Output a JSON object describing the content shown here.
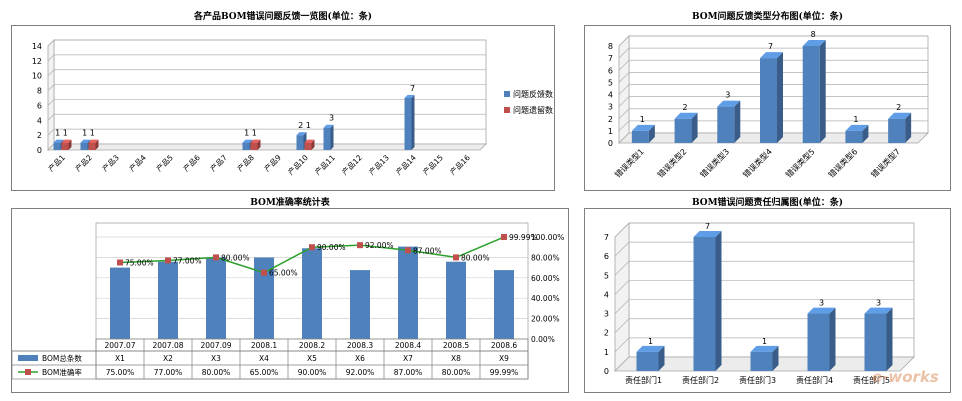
{
  "chart_data": [
    {
      "type": "bar",
      "title": "各产品BOM错误问题反馈一览图(单位：条)",
      "categories": [
        "产品1",
        "产品2",
        "产品3",
        "产品4",
        "产品5",
        "产品6",
        "产品7",
        "产品8",
        "产品9",
        "产品10",
        "产品11",
        "产品12",
        "产品13",
        "产品14",
        "产品15",
        "产品16"
      ],
      "series": [
        {
          "name": "问题反馈数",
          "values": [
            1,
            1,
            0,
            0,
            0,
            0,
            0,
            1,
            0,
            2,
            3,
            0,
            0,
            7,
            0,
            0
          ],
          "color": "#4f81bd"
        },
        {
          "name": "问题遗留数",
          "values": [
            1,
            1,
            0,
            0,
            0,
            0,
            0,
            1,
            0,
            1,
            0,
            0,
            0,
            0,
            0,
            0
          ],
          "color": "#c0504d"
        }
      ],
      "data_labels": [
        {
          "category": "产品1",
          "text": "1 1"
        },
        {
          "category": "产品2",
          "text": "1 1"
        },
        {
          "category": "产品8",
          "text": "1 1"
        },
        {
          "category": "产品10",
          "text": "2 1"
        },
        {
          "category": "产品11",
          "text": "3"
        },
        {
          "category": "产品14",
          "text": "7"
        }
      ],
      "yticks": [
        "0",
        "2",
        "4",
        "6",
        "8",
        "10",
        "12",
        "14"
      ],
      "ylim": [
        0,
        14
      ],
      "legend": "right",
      "grid": true
    },
    {
      "type": "bar",
      "title": "BOM问题反馈类型分布图(单位：条)",
      "categories": [
        "错误类型1",
        "错误类型2",
        "错误类型3",
        "错误类型4",
        "错误类型5",
        "错误类型6",
        "错误类型7"
      ],
      "values": [
        1,
        2,
        3,
        7,
        8,
        1,
        2
      ],
      "color": "#4f81bd",
      "yticks": [
        "0",
        "1",
        "2",
        "3",
        "4",
        "5",
        "6",
        "7",
        "8"
      ],
      "ylim": [
        0,
        8
      ],
      "grid": true
    },
    {
      "type": "bar",
      "title": "BOM准确率统计表",
      "categories": [
        "2007.07",
        "2007.08",
        "2007.09",
        "2008.1",
        "2008.2",
        "2008.3",
        "2008.4",
        "2008.5",
        "2008.6"
      ],
      "series": [
        {
          "name": "BOM总条数",
          "values": [
            "X1",
            "X2",
            "X3",
            "X4",
            "X5",
            "X6",
            "X7",
            "X8",
            "X9"
          ],
          "color": "#4f81bd"
        },
        {
          "name": "BOM准确率",
          "values": [
            0.75,
            0.77,
            0.8,
            0.65,
            0.9,
            0.92,
            0.87,
            0.8,
            0.9999
          ],
          "color": "#c0504d",
          "line_color": "#2ca02c"
        }
      ],
      "rate_labels": [
        "75.00%",
        "77.00%",
        "80.00%",
        "65.00%",
        "90.00%",
        "92.00%",
        "87.00%",
        "80.00%",
        "99.99%"
      ],
      "y2ticks": [
        "0.00%",
        "20.00%",
        "40.00%",
        "60.00%",
        "80.00%",
        "100.00%"
      ],
      "y2lim": [
        0,
        1
      ],
      "legend": "data table",
      "grid": true
    },
    {
      "type": "bar",
      "title": "BOM错误问题责任归属图(单位：条)",
      "categories": [
        "责任部门1",
        "责任部门2",
        "责任部门3",
        "责任部门4",
        "责任部门5"
      ],
      "values": [
        1,
        7,
        1,
        3,
        3
      ],
      "color": "#4f81bd",
      "yticks": [
        "0",
        "1",
        "2",
        "3",
        "4",
        "5",
        "6",
        "7"
      ],
      "ylim": [
        0,
        7
      ],
      "grid": true
    }
  ],
  "watermark": "e-works"
}
